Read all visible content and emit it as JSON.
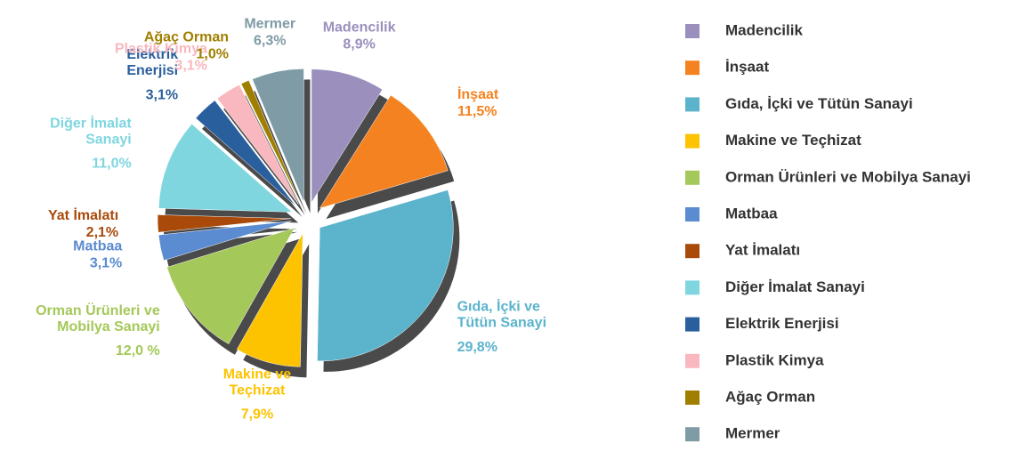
{
  "chart_data": {
    "type": "pie",
    "categories": [
      "Madencilik",
      "İnşaat",
      "Gıda, İçki ve Tütün Sanayi",
      "Makine ve Teçhizat",
      "Orman Ürünleri ve Mobilya Sanayi",
      "Matbaa",
      "Yat İmalatı",
      "Diğer İmalat Sanayi",
      "Elektrik Enerjisi",
      "Plastik Kimya",
      "Ağaç Orman",
      "Mermer"
    ],
    "values": [
      8.9,
      11.5,
      29.8,
      7.9,
      12.0,
      3.1,
      2.1,
      11.0,
      3.1,
      3.1,
      1.0,
      6.3
    ],
    "value_labels": [
      "8,9%",
      "11,5%",
      "29,8%",
      "7,9%",
      "12,0 %",
      "3,1%",
      "2,1%",
      "11,0%",
      "3,1%",
      "3,1%",
      "1,0%",
      "6,3%"
    ],
    "colors": [
      "#9b8fbd",
      "#f58220",
      "#5bb3cc",
      "#fdc300",
      "#a5c85a",
      "#5b8bd0",
      "#a94a0a",
      "#7fd6df",
      "#2a5f9e",
      "#f9b8bf",
      "#a07f00",
      "#7f9ba6"
    ],
    "legend": "right"
  }
}
